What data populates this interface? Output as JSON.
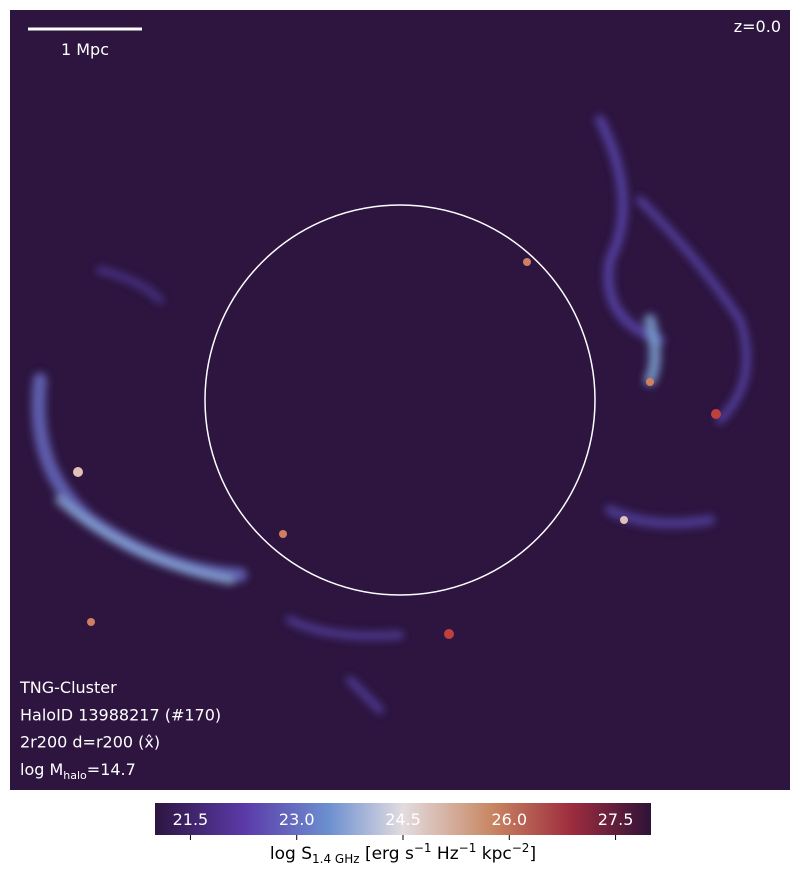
{
  "image": {
    "scale_bar": "1 Mpc",
    "redshift": "z=0.0",
    "info": [
      {
        "parts": [
          "TNG-Cluster"
        ]
      },
      {
        "parts": [
          "HaloID 13988217 (#170)"
        ]
      },
      {
        "parts": [
          "2r200 d=r200 (x̂)"
        ]
      },
      {
        "parts": [
          "log M",
          "halo",
          "=14.7"
        ]
      }
    ],
    "colorbar": {
      "clim": [
        21,
        28
      ],
      "ticks": [
        21.5,
        {
          "value": 23,
          "label": "23.0"
        },
        24.5,
        {
          "value": 26,
          "label": "26.0"
        },
        27.5
      ],
      "label_parts": [
        "log S",
        "1.4 GHz",
        " [erg s",
        "−1",
        " Hz",
        "−1",
        " kpc",
        "−2",
        "]"
      ]
    }
  }
}
